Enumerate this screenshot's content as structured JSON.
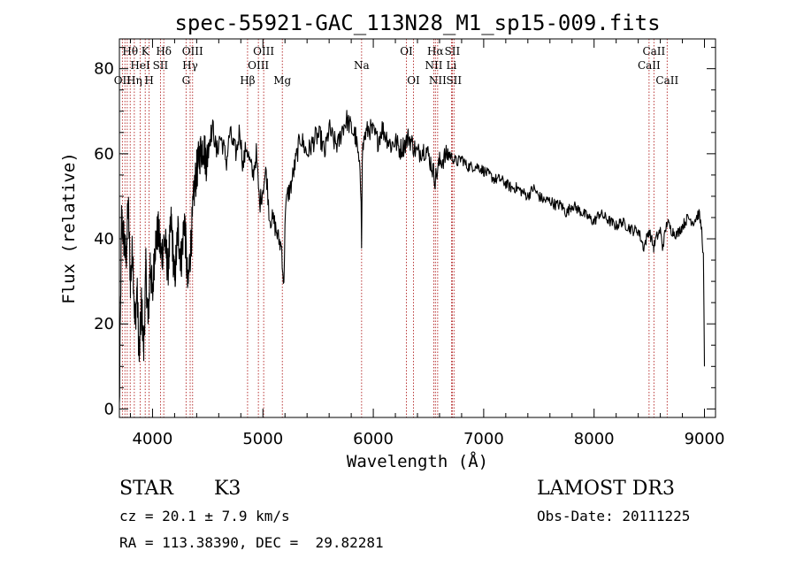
{
  "chart_data": {
    "type": "line",
    "title": "spec-55921-GAC_113N28_M1_sp15-009.fits",
    "xlabel": "Wavelength (Å)",
    "ylabel": "Flux (relative)",
    "xlim": [
      3700,
      9100
    ],
    "ylim": [
      -2,
      87
    ],
    "xticks": [
      4000,
      5000,
      6000,
      7000,
      8000,
      9000
    ],
    "xtick_labels": [
      "4000",
      "5000",
      "6000",
      "7000",
      "8000",
      "9000"
    ],
    "yticks": [
      0,
      20,
      40,
      60,
      80
    ],
    "ytick_labels": [
      "0",
      "20",
      "40",
      "60",
      "80"
    ],
    "series": [
      {
        "name": "flux",
        "x": [
          3700,
          3720,
          3740,
          3760,
          3780,
          3800,
          3820,
          3840,
          3860,
          3880,
          3900,
          3920,
          3940,
          3960,
          3980,
          4000,
          4020,
          4050,
          4080,
          4110,
          4140,
          4170,
          4200,
          4230,
          4260,
          4290,
          4320,
          4350,
          4380,
          4400,
          4430,
          4460,
          4490,
          4520,
          4550,
          4580,
          4610,
          4640,
          4670,
          4700,
          4730,
          4760,
          4790,
          4820,
          4850,
          4880,
          4910,
          4940,
          4970,
          5000,
          5030,
          5060,
          5100,
          5140,
          5170,
          5190,
          5200,
          5220,
          5250,
          5280,
          5310,
          5340,
          5370,
          5400,
          5440,
          5480,
          5520,
          5560,
          5600,
          5640,
          5680,
          5720,
          5760,
          5800,
          5840,
          5870,
          5890,
          5894,
          5900,
          5920,
          5960,
          6000,
          6040,
          6080,
          6120,
          6160,
          6200,
          6240,
          6280,
          6320,
          6360,
          6400,
          6440,
          6480,
          6520,
          6562,
          6600,
          6640,
          6680,
          6720,
          6760,
          6800,
          6850,
          6900,
          6950,
          7000,
          7050,
          7100,
          7150,
          7200,
          7250,
          7300,
          7350,
          7400,
          7450,
          7500,
          7550,
          7600,
          7650,
          7700,
          7750,
          7800,
          7850,
          7900,
          7950,
          8000,
          8050,
          8100,
          8150,
          8200,
          8250,
          8300,
          8350,
          8400,
          8450,
          8498,
          8540,
          8560,
          8600,
          8620,
          8662,
          8700,
          8750,
          8800,
          8850,
          8900,
          8950,
          8975,
          8990,
          9000
        ],
        "values": [
          0,
          45,
          40,
          35,
          48,
          30,
          38,
          20,
          28,
          12,
          25,
          14,
          33,
          20,
          35,
          26,
          38,
          42,
          36,
          40,
          33,
          44,
          30,
          42,
          35,
          45,
          28,
          40,
          52,
          56,
          60,
          62,
          58,
          64,
          66,
          60,
          64,
          62,
          58,
          65,
          62,
          60,
          66,
          57,
          62,
          58,
          55,
          60,
          48,
          52,
          56,
          45,
          44,
          40,
          38,
          28,
          45,
          50,
          52,
          56,
          60,
          64,
          62,
          60,
          62,
          64,
          64,
          60,
          66,
          63,
          62,
          66,
          68,
          66,
          64,
          58,
          50,
          40,
          60,
          64,
          66,
          65,
          63,
          66,
          64,
          62,
          63,
          61,
          62,
          64,
          62,
          60,
          61,
          61,
          58,
          54,
          58,
          59,
          60,
          59,
          58,
          59,
          57,
          57,
          57,
          56,
          55,
          54,
          54,
          53,
          52,
          52,
          51,
          50,
          52,
          50,
          49,
          49,
          48,
          48,
          46,
          48,
          47,
          46,
          45,
          44,
          46,
          45,
          44,
          43,
          44,
          43,
          42,
          42,
          38,
          42,
          38,
          40,
          42,
          38,
          44,
          42,
          41,
          43,
          45,
          44,
          46,
          42,
          36,
          10
        ]
      }
    ],
    "lines": [
      {
        "wavelength": 3727,
        "label": "OII",
        "row": 3
      },
      {
        "wavelength": 3750,
        "label": "",
        "row": 0
      },
      {
        "wavelength": 3771,
        "label": "",
        "row": 0
      },
      {
        "wavelength": 3798,
        "label": "Hθ",
        "row": 1
      },
      {
        "wavelength": 3835,
        "label": "Hη",
        "row": 3
      },
      {
        "wavelength": 3889,
        "label": "HeI",
        "row": 2
      },
      {
        "wavelength": 3934,
        "label": "K",
        "row": 1
      },
      {
        "wavelength": 3969,
        "label": "H",
        "row": 3
      },
      {
        "wavelength": 4072,
        "label": "SII",
        "row": 2
      },
      {
        "wavelength": 4102,
        "label": "Hδ",
        "row": 1
      },
      {
        "wavelength": 4304,
        "label": "G",
        "row": 3
      },
      {
        "wavelength": 4341,
        "label": "Hγ",
        "row": 2
      },
      {
        "wavelength": 4363,
        "label": "OIII",
        "row": 1
      },
      {
        "wavelength": 4861,
        "label": "Hβ",
        "row": 3
      },
      {
        "wavelength": 4959,
        "label": "OIII",
        "row": 2
      },
      {
        "wavelength": 5007,
        "label": "OIII",
        "row": 1
      },
      {
        "wavelength": 5176,
        "label": "Mg",
        "row": 3
      },
      {
        "wavelength": 5894,
        "label": "Na",
        "row": 2
      },
      {
        "wavelength": 6300,
        "label": "OI",
        "row": 1
      },
      {
        "wavelength": 6364,
        "label": "OI",
        "row": 3
      },
      {
        "wavelength": 6548,
        "label": "NII",
        "row": 2
      },
      {
        "wavelength": 6563,
        "label": "Hα",
        "row": 1
      },
      {
        "wavelength": 6583,
        "label": "NII",
        "row": 3
      },
      {
        "wavelength": 6708,
        "label": "Li",
        "row": 2
      },
      {
        "wavelength": 6716,
        "label": "SII",
        "row": 1
      },
      {
        "wavelength": 6731,
        "label": "SII",
        "row": 3
      },
      {
        "wavelength": 8498,
        "label": "CaII",
        "row": 2
      },
      {
        "wavelength": 8542,
        "label": "CaII",
        "row": 1
      },
      {
        "wavelength": 8662,
        "label": "CaII",
        "row": 3
      }
    ],
    "grid": false,
    "line_color": "#000000",
    "marker_color": "#b22222"
  },
  "info": {
    "class_label": "STAR",
    "subclass": "K3",
    "cz": "cz = 20.1 ± 7.9 km/s",
    "coords": "RA = 113.38390, DEC =  29.82281",
    "survey": "LAMOST DR3",
    "obs_date": "Obs-Date: 20111225"
  }
}
